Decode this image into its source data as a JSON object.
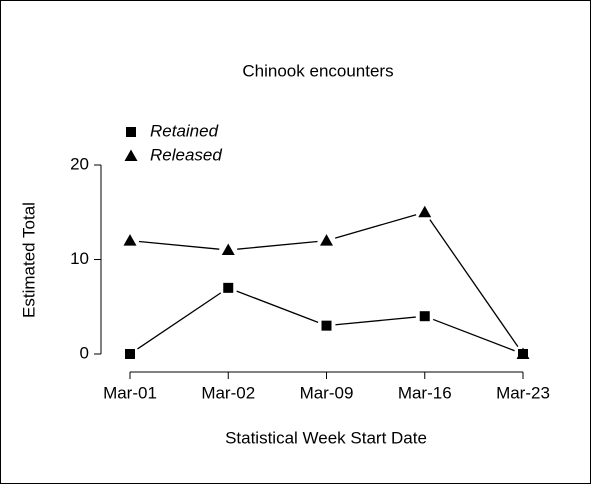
{
  "chart_data": {
    "type": "line",
    "title": "Chinook encounters",
    "x_label": "Statistical Week Start Date",
    "y_label": "Estimated Total",
    "categories": [
      "Mar-01",
      "Mar-02",
      "Mar-09",
      "Mar-16",
      "Mar-23"
    ],
    "series": [
      {
        "name": "Retained",
        "color": "#000000",
        "marker": "square",
        "values": [
          0,
          7,
          3,
          4,
          0
        ]
      },
      {
        "name": "Released",
        "color": "#000000",
        "marker": "triangle",
        "values": [
          12,
          11,
          12,
          15,
          0
        ]
      }
    ],
    "ylim": [
      0,
      20
    ],
    "yticks": [
      0,
      10,
      20
    ],
    "legend": "top-left"
  }
}
